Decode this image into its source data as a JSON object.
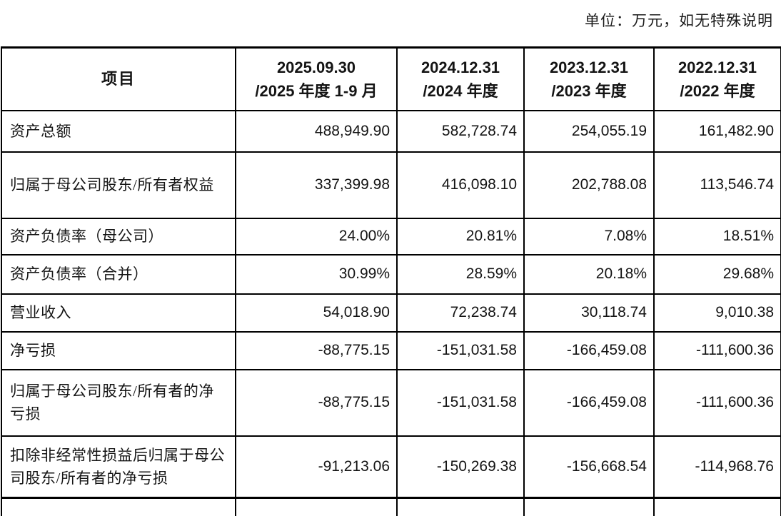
{
  "unit_note": "单位：万元，如无特殊说明",
  "table": {
    "columns": [
      {
        "title": "项目",
        "subtitle": ""
      },
      {
        "title": "2025.09.30",
        "subtitle": "/2025 年度 1-9 月"
      },
      {
        "title": "2024.12.31",
        "subtitle": "/2024 年度"
      },
      {
        "title": "2023.12.31",
        "subtitle": "/2023 年度"
      },
      {
        "title": "2022.12.31",
        "subtitle": "/2022 年度"
      }
    ],
    "rows": [
      {
        "label": "资产总额",
        "values": [
          "488,949.90",
          "582,728.74",
          "254,055.19",
          "161,482.90"
        ]
      },
      {
        "label": "归属于母公司股东/所有者权益",
        "values": [
          "337,399.98",
          "416,098.10",
          "202,788.08",
          "113,546.74"
        ]
      },
      {
        "label": "资产负债率（母公司）",
        "values": [
          "24.00%",
          "20.81%",
          "7.08%",
          "18.51%"
        ]
      },
      {
        "label": "资产负债率（合并）",
        "values": [
          "30.99%",
          "28.59%",
          "20.18%",
          "29.68%"
        ]
      },
      {
        "label": "营业收入",
        "values": [
          "54,018.90",
          "72,238.74",
          "30,118.74",
          "9,010.38"
        ]
      },
      {
        "label": "净亏损",
        "values": [
          "-88,775.15",
          "-151,031.58",
          "-166,459.08",
          "-111,600.36"
        ]
      },
      {
        "label": "归属于母公司股东/所有者的净亏损",
        "values": [
          "-88,775.15",
          "-151,031.58",
          "-166,459.08",
          "-111,600.36"
        ]
      },
      {
        "label": "扣除非经常性损益后归属于母公司股东/所有者的净亏损",
        "values": [
          "-91,213.06",
          "-150,269.38",
          "-156,668.54",
          "-114,968.76"
        ]
      }
    ]
  }
}
